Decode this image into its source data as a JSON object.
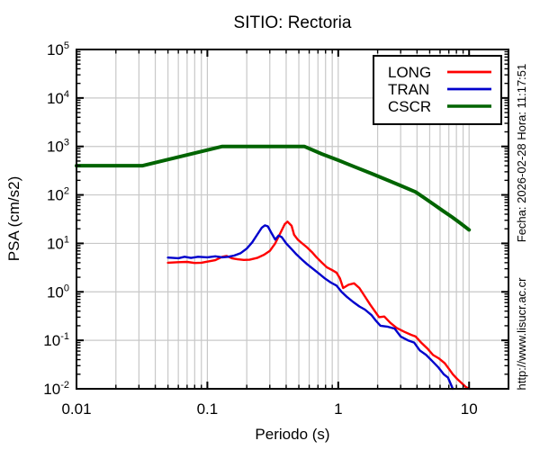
{
  "chart_data": {
    "type": "line",
    "title": "SITIO: Rectoria",
    "xlabel": "Periodo (s)",
    "ylabel": "PSA (cm/s2)",
    "x_scale": "log",
    "y_scale": "log",
    "xlim": [
      0.01,
      20
    ],
    "ylim": [
      0.01,
      100000
    ],
    "x_ticks": [
      0.01,
      0.1,
      1,
      10
    ],
    "x_tick_labels": [
      "0.01",
      "0.1",
      "1",
      "10"
    ],
    "y_tick_exponents": [
      -2,
      -1,
      0,
      1,
      2,
      3,
      4,
      5
    ],
    "grid": true,
    "legend_position": "top-right",
    "legend_entries": [
      "LONG",
      "TRAN",
      "CSCR"
    ],
    "series": [
      {
        "name": "LONG",
        "color": "#ff0000",
        "width": 2.4,
        "points": [
          [
            0.05,
            4.0
          ],
          [
            0.06,
            4.1
          ],
          [
            0.07,
            4.15
          ],
          [
            0.08,
            3.95
          ],
          [
            0.09,
            4.0
          ],
          [
            0.1,
            4.2
          ],
          [
            0.115,
            4.5
          ],
          [
            0.13,
            5.3
          ],
          [
            0.14,
            5.5
          ],
          [
            0.155,
            4.9
          ],
          [
            0.17,
            4.7
          ],
          [
            0.19,
            4.55
          ],
          [
            0.21,
            4.6
          ],
          [
            0.24,
            5.0
          ],
          [
            0.27,
            5.8
          ],
          [
            0.3,
            7.0
          ],
          [
            0.33,
            10.0
          ],
          [
            0.36,
            16.0
          ],
          [
            0.39,
            25.0
          ],
          [
            0.41,
            28.0
          ],
          [
            0.44,
            23.0
          ],
          [
            0.46,
            15.0
          ],
          [
            0.49,
            12.0
          ],
          [
            0.53,
            10.0
          ],
          [
            0.58,
            8.2
          ],
          [
            0.63,
            6.6
          ],
          [
            0.68,
            5.2
          ],
          [
            0.75,
            4.0
          ],
          [
            0.82,
            3.2
          ],
          [
            0.9,
            2.8
          ],
          [
            0.97,
            2.5
          ],
          [
            1.03,
            1.9
          ],
          [
            1.09,
            1.2
          ],
          [
            1.2,
            1.4
          ],
          [
            1.32,
            1.5
          ],
          [
            1.45,
            1.2
          ],
          [
            1.6,
            0.8
          ],
          [
            1.75,
            0.55
          ],
          [
            1.9,
            0.4
          ],
          [
            2.05,
            0.3
          ],
          [
            2.25,
            0.31
          ],
          [
            2.5,
            0.23
          ],
          [
            2.8,
            0.18
          ],
          [
            3.2,
            0.15
          ],
          [
            3.6,
            0.13
          ],
          [
            3.9,
            0.12
          ],
          [
            4.3,
            0.09
          ],
          [
            4.8,
            0.068
          ],
          [
            5.3,
            0.05
          ],
          [
            5.9,
            0.042
          ],
          [
            6.5,
            0.034
          ],
          [
            7.0,
            0.026
          ],
          [
            7.5,
            0.02
          ],
          [
            8.1,
            0.016
          ],
          [
            8.8,
            0.013
          ],
          [
            9.4,
            0.011
          ],
          [
            10.0,
            0.01
          ]
        ]
      },
      {
        "name": "TRAN",
        "color": "#0000cc",
        "width": 2.4,
        "points": [
          [
            0.05,
            5.1
          ],
          [
            0.06,
            4.95
          ],
          [
            0.067,
            5.3
          ],
          [
            0.075,
            5.0
          ],
          [
            0.085,
            5.3
          ],
          [
            0.1,
            5.15
          ],
          [
            0.115,
            5.4
          ],
          [
            0.13,
            5.15
          ],
          [
            0.145,
            5.3
          ],
          [
            0.16,
            5.6
          ],
          [
            0.18,
            6.3
          ],
          [
            0.2,
            7.8
          ],
          [
            0.22,
            10.5
          ],
          [
            0.24,
            15.0
          ],
          [
            0.26,
            21.0
          ],
          [
            0.275,
            23.5
          ],
          [
            0.29,
            22.5
          ],
          [
            0.31,
            16.0
          ],
          [
            0.33,
            12.0
          ],
          [
            0.35,
            14.5
          ],
          [
            0.37,
            13.5
          ],
          [
            0.4,
            10.0
          ],
          [
            0.44,
            7.6
          ],
          [
            0.48,
            5.9
          ],
          [
            0.53,
            4.6
          ],
          [
            0.58,
            3.7
          ],
          [
            0.64,
            3.0
          ],
          [
            0.71,
            2.4
          ],
          [
            0.79,
            1.9
          ],
          [
            0.88,
            1.55
          ],
          [
            0.97,
            1.35
          ],
          [
            1.06,
            1.0
          ],
          [
            1.17,
            0.78
          ],
          [
            1.3,
            0.62
          ],
          [
            1.45,
            0.5
          ],
          [
            1.6,
            0.43
          ],
          [
            1.8,
            0.33
          ],
          [
            1.95,
            0.25
          ],
          [
            2.1,
            0.2
          ],
          [
            2.4,
            0.19
          ],
          [
            2.7,
            0.175
          ],
          [
            3.0,
            0.12
          ],
          [
            3.4,
            0.1
          ],
          [
            3.8,
            0.09
          ],
          [
            4.2,
            0.062
          ],
          [
            4.7,
            0.05
          ],
          [
            5.2,
            0.038
          ],
          [
            5.8,
            0.028
          ],
          [
            6.4,
            0.02
          ],
          [
            6.9,
            0.017
          ],
          [
            7.2,
            0.013
          ],
          [
            7.5,
            0.01
          ]
        ]
      },
      {
        "name": "CSCR",
        "color": "#006400",
        "width": 4,
        "points": [
          [
            0.01,
            400
          ],
          [
            0.032,
            400
          ],
          [
            0.13,
            1000
          ],
          [
            0.55,
            1000
          ],
          [
            0.75,
            700
          ],
          [
            1.0,
            520
          ],
          [
            1.35,
            375
          ],
          [
            1.8,
            275
          ],
          [
            2.4,
            200
          ],
          [
            3.1,
            150
          ],
          [
            3.9,
            115
          ],
          [
            4.6,
            85
          ],
          [
            5.4,
            63
          ],
          [
            6.3,
            47
          ],
          [
            7.4,
            35
          ],
          [
            8.6,
            26
          ],
          [
            10.0,
            19
          ]
        ]
      }
    ]
  },
  "annotations": {
    "timestamp": "Fecha: 2026-02-28  Hora: 11:17:51",
    "website": "http://www.lisucr.ac.cr"
  },
  "colors": {
    "grid": "#c8c8c8",
    "frame": "#000000",
    "background": "#ffffff"
  }
}
